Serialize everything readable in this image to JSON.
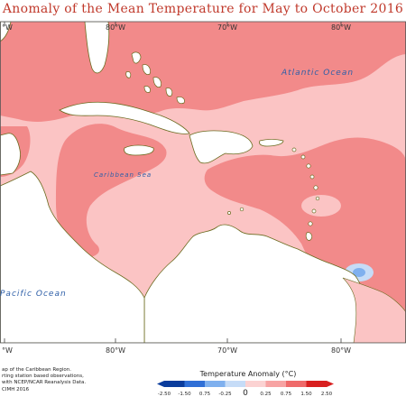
{
  "title": "Anomaly of the Mean Temperature for May to October 2016",
  "longitudes_top": [
    "°W",
    "80°W",
    "70°W",
    "80°W"
  ],
  "longitudes_bottom": [
    "°W",
    "80°W",
    "70°W",
    "80°W"
  ],
  "labels": {
    "atlantic": "Atlantic Ocean",
    "caribbean": "Caribbean Sea",
    "pacific": "Pacific Ocean"
  },
  "notes": [
    "ap of the Caribbean Region.",
    "rting station based observations,",
    "with NCEP/NCAR Reanalysis Data.",
    "CIMH 2016"
  ],
  "legend": {
    "title": "Temperature Anomaly (°C)",
    "ticks": [
      "-2.50",
      "-1.50",
      "0.75",
      "-0.25",
      "0",
      "0.25",
      "0.75",
      "1.50",
      "2.50"
    ],
    "colors": [
      "#0a3c9c",
      "#2f6fd6",
      "#7fb0ee",
      "#c6dcf7",
      "#fbd2d2",
      "#f7a3a3",
      "#ef6a6a",
      "#d81f1f"
    ]
  },
  "colors": {
    "light_anomaly": "#fbc4c4",
    "strong_anomaly": "#f28a8a",
    "land": "#ffffff",
    "coast": "#6b6b1f",
    "cold_spot": "#8fb8ea"
  }
}
